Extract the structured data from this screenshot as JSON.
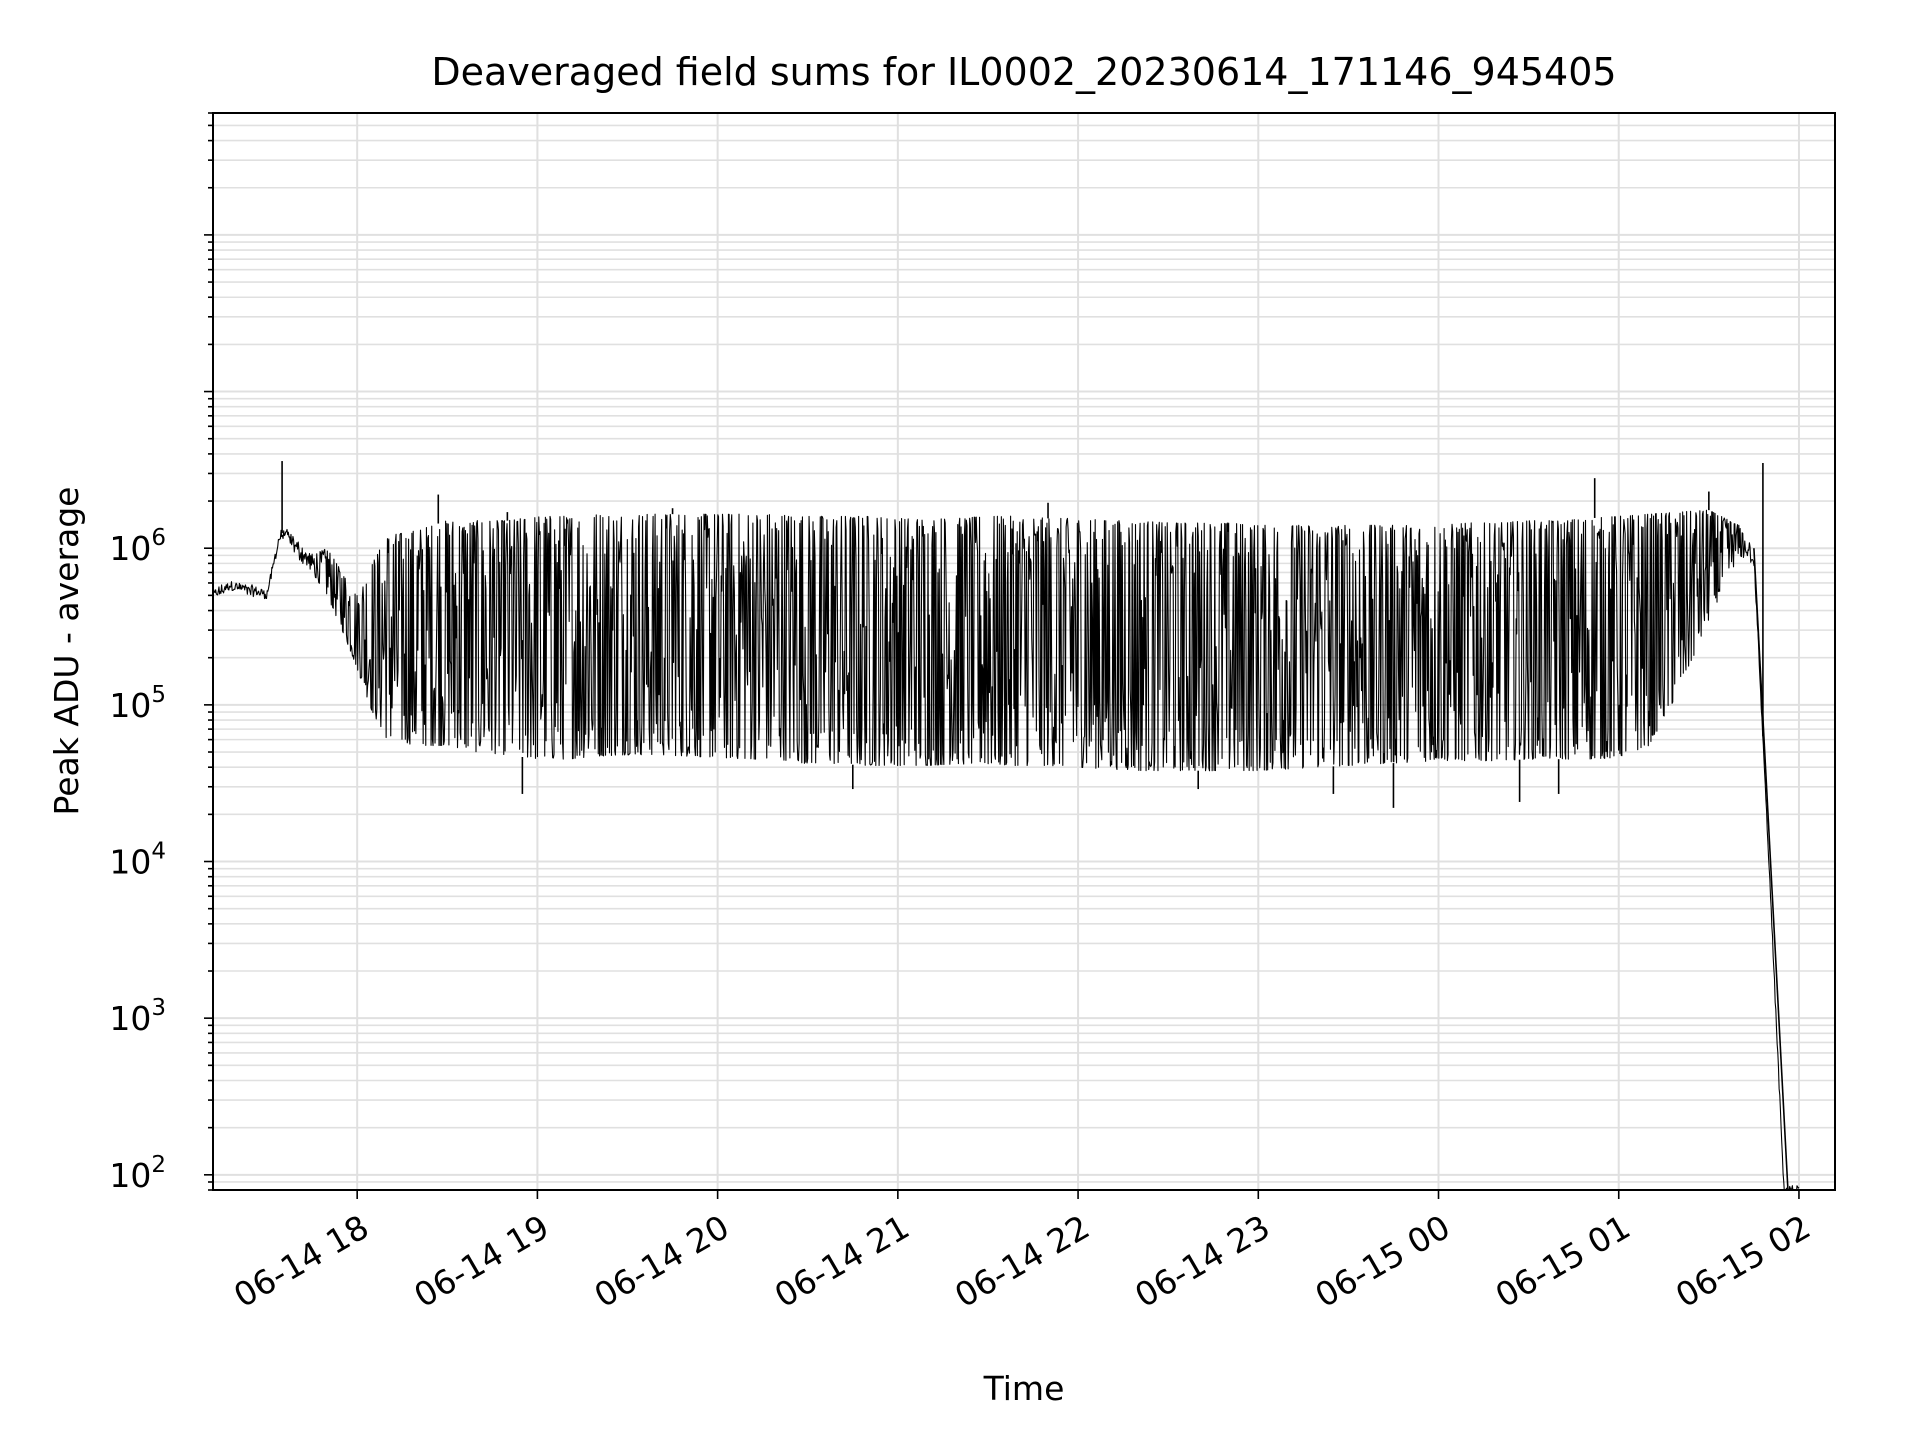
{
  "chart_data": {
    "type": "line",
    "title": "Deaveraged field sums for IL0002_20230614_171146_945405",
    "xlabel": "Time",
    "ylabel": "Peak ADU - average",
    "yscale": "log",
    "ylim": [
      80,
      600000000
    ],
    "xlim": [
      "2023-06-14T17:12",
      "2023-06-15T02:12"
    ],
    "x_ticks": [
      {
        "label": "06-14 18",
        "value": "2023-06-14T18:00"
      },
      {
        "label": "06-14 19",
        "value": "2023-06-14T19:00"
      },
      {
        "label": "06-14 20",
        "value": "2023-06-14T20:00"
      },
      {
        "label": "06-14 21",
        "value": "2023-06-14T21:00"
      },
      {
        "label": "06-14 22",
        "value": "2023-06-14T22:00"
      },
      {
        "label": "06-14 23",
        "value": "2023-06-14T23:00"
      },
      {
        "label": "06-15 00",
        "value": "2023-06-15T00:00"
      },
      {
        "label": "06-15 01",
        "value": "2023-06-15T01:00"
      },
      {
        "label": "06-15 02",
        "value": "2023-06-15T02:00"
      }
    ],
    "y_ticks": [
      {
        "base": "10",
        "exp": "2",
        "value": 100
      },
      {
        "base": "10",
        "exp": "3",
        "value": 1000
      },
      {
        "base": "10",
        "exp": "4",
        "value": 10000
      },
      {
        "base": "10",
        "exp": "5",
        "value": 100000
      },
      {
        "base": "10",
        "exp": "6",
        "value": 1000000
      }
    ],
    "grid": true,
    "line_color": "#000000",
    "grid_color": "#e0e0e0",
    "series": [
      {
        "x": [
          "2023-06-14T17:12",
          "2023-06-14T17:18",
          "2023-06-14T17:24",
          "2023-06-14T17:30",
          "2023-06-14T17:34",
          "2023-06-14T17:36",
          "2023-06-14T17:40",
          "2023-06-14T17:45",
          "2023-06-14T17:50",
          "2023-06-14T17:55",
          "2023-06-14T18:00",
          "2023-06-14T18:05",
          "2023-06-14T18:10",
          "2023-06-14T18:20",
          "2023-06-14T18:30",
          "2023-06-14T18:40",
          "2023-06-14T18:50",
          "2023-06-14T19:00",
          "2023-06-14T19:10",
          "2023-06-14T19:20",
          "2023-06-14T19:30",
          "2023-06-14T19:40",
          "2023-06-14T19:50",
          "2023-06-14T20:00",
          "2023-06-14T20:10",
          "2023-06-14T20:20",
          "2023-06-14T20:30",
          "2023-06-14T20:40",
          "2023-06-14T20:50",
          "2023-06-14T21:00",
          "2023-06-14T21:10",
          "2023-06-14T21:20",
          "2023-06-14T21:30",
          "2023-06-14T21:40",
          "2023-06-14T21:50",
          "2023-06-14T22:00",
          "2023-06-14T22:10",
          "2023-06-14T22:20",
          "2023-06-14T22:30",
          "2023-06-14T22:40",
          "2023-06-14T22:50",
          "2023-06-14T23:00",
          "2023-06-14T23:10",
          "2023-06-14T23:20",
          "2023-06-14T23:30",
          "2023-06-14T23:40",
          "2023-06-14T23:50",
          "2023-06-15T00:00",
          "2023-06-15T00:10",
          "2023-06-15T00:20",
          "2023-06-15T00:30",
          "2023-06-15T00:40",
          "2023-06-15T00:50",
          "2023-06-15T01:00",
          "2023-06-15T01:10",
          "2023-06-15T01:20",
          "2023-06-15T01:30",
          "2023-06-15T01:40",
          "2023-06-15T01:45",
          "2023-06-15T01:50",
          "2023-06-15T01:55",
          "2023-06-15T02:00"
        ],
        "y": [
          480000,
          560000,
          520000,
          500000,
          1100000,
          1200000,
          900000,
          700000,
          500000,
          300000,
          170000,
          90000,
          60000,
          55000,
          55000,
          50000,
          48000,
          45000,
          45000,
          47000,
          48000,
          48000,
          47000,
          46000,
          45000,
          45000,
          42000,
          42000,
          41000,
          41000,
          41000,
          42000,
          41000,
          41000,
          41000,
          40000,
          39000,
          38000,
          38000,
          38000,
          38000,
          38000,
          39000,
          40000,
          41000,
          42000,
          43000,
          44000,
          44000,
          44000,
          45000,
          45000,
          45000,
          46000,
          55000,
          120000,
          350000,
          900000,
          800000,
          10000,
          80,
          80
        ],
        "y_high": [
          520000,
          600000,
          560000,
          520000,
          1200000,
          1300000,
          1100000,
          900000,
          1000000,
          700000,
          500000,
          800000,
          1200000,
          1300000,
          1500000,
          1500000,
          1500000,
          1600000,
          1600000,
          1650000,
          1650000,
          1650000,
          1650000,
          1650000,
          1650000,
          1650000,
          1600000,
          1600000,
          1600000,
          1550000,
          1550000,
          1550000,
          1600000,
          1600000,
          1550000,
          1550000,
          1500000,
          1500000,
          1450000,
          1450000,
          1450000,
          1400000,
          1400000,
          1400000,
          1400000,
          1400000,
          1400000,
          1400000,
          1450000,
          1450000,
          1500000,
          1500000,
          1550000,
          1600000,
          1650000,
          1700000,
          1750000,
          1400000,
          1000000,
          10000,
          80,
          80
        ],
        "spikes": [
          {
            "x": "2023-06-14T17:35",
            "y": 3600000
          },
          {
            "x": "2023-06-14T18:27",
            "y": 2200000
          },
          {
            "x": "2023-06-14T18:50",
            "y": 1700000
          },
          {
            "x": "2023-06-14T19:45",
            "y": 1800000
          },
          {
            "x": "2023-06-14T21:50",
            "y": 1950000
          },
          {
            "x": "2023-06-15T00:52",
            "y": 2800000
          },
          {
            "x": "2023-06-15T01:30",
            "y": 2300000
          },
          {
            "x": "2023-06-15T01:48",
            "y": 3500000
          }
        ],
        "dips": [
          {
            "x": "2023-06-14T18:55",
            "y": 27000
          },
          {
            "x": "2023-06-14T20:45",
            "y": 29000
          },
          {
            "x": "2023-06-14T22:40",
            "y": 29000
          },
          {
            "x": "2023-06-14T23:25",
            "y": 27000
          },
          {
            "x": "2023-06-14T23:45",
            "y": 22000
          },
          {
            "x": "2023-06-15T00:27",
            "y": 24000
          },
          {
            "x": "2023-06-15T00:40",
            "y": 27000
          }
        ]
      }
    ]
  }
}
